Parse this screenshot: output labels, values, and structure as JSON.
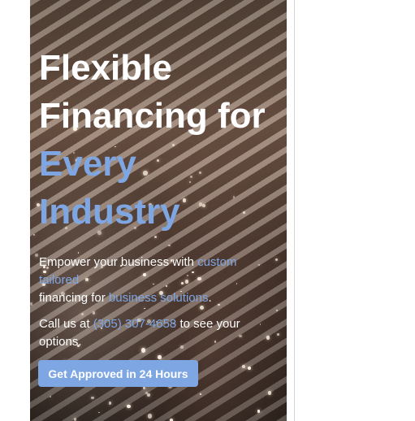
{
  "hero": {
    "headline_line1": "Flexible",
    "headline_line2": "Financing for",
    "headline_accent1": "Every",
    "headline_accent2": "Industry",
    "sub_text1": "Empower your business with ",
    "sub_link1a": "custom",
    "sub_link1b": "tailored",
    "sub_text2": "financing for ",
    "sub_link2": "business solutions",
    "sub_text3": ".",
    "call_text1": "Call us at ",
    "call_phone": "(305) 307-4658",
    "call_text2": " to see your",
    "call_text3": "options.",
    "cta_label": "Get Approved in 24 Hours"
  },
  "colors": {
    "accent": "#7ea6e2",
    "text": "#ffffff"
  }
}
